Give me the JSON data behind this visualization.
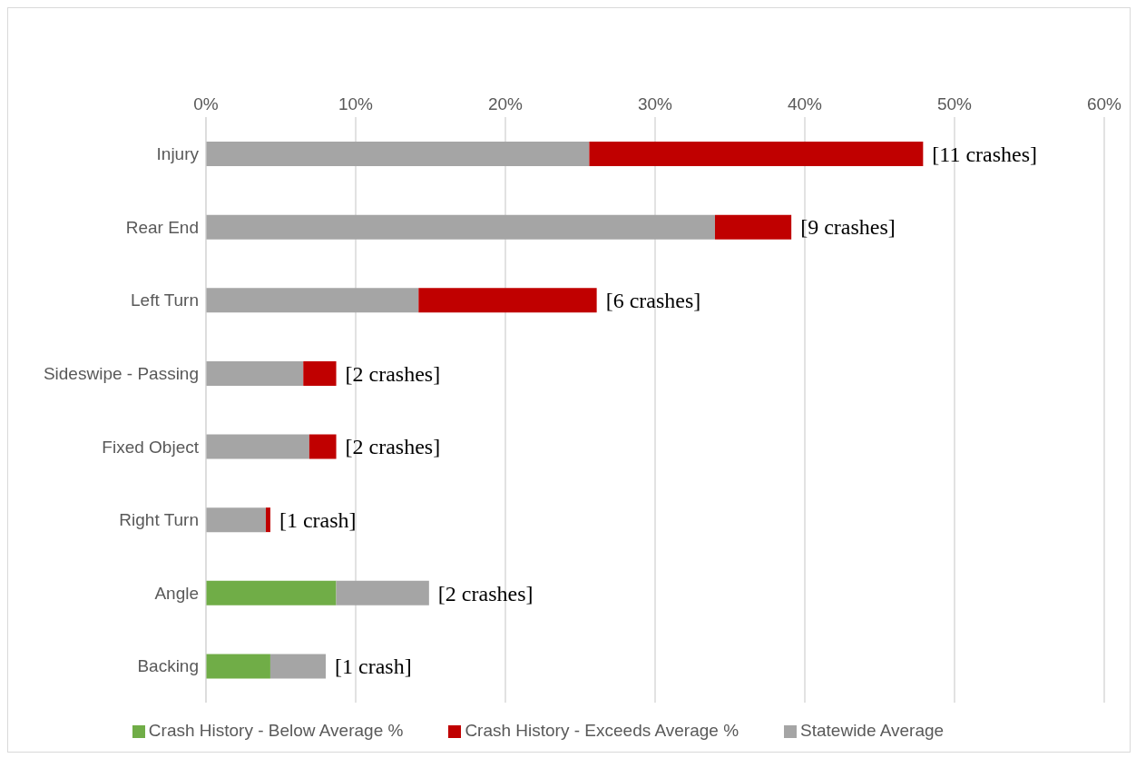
{
  "chart_data": {
    "type": "bar",
    "orientation": "horizontal",
    "stacked": true,
    "categories": [
      "Injury",
      "Rear End",
      "Left Turn",
      "Sideswipe - Passing",
      "Fixed Object",
      "Right Turn",
      "Angle",
      "Backing"
    ],
    "series": [
      {
        "name": "Crash History - Below Average %",
        "color": "#70ad47",
        "values": [
          null,
          null,
          null,
          null,
          null,
          null,
          8.7,
          4.3
        ]
      },
      {
        "name": "Statewide Average",
        "color": "#a5a5a5",
        "values": [
          25.6,
          34.0,
          14.2,
          6.5,
          6.9,
          4.0,
          6.2,
          3.7
        ]
      },
      {
        "name": "Crash History - Exceeds Average %",
        "color": "#c00000",
        "values": [
          22.3,
          5.1,
          11.9,
          2.2,
          1.8,
          0.3,
          null,
          null
        ]
      }
    ],
    "xlim": [
      0,
      60
    ],
    "xticks": [
      {
        "value": 0,
        "label": "0%"
      },
      {
        "value": 10,
        "label": "10%"
      },
      {
        "value": 20,
        "label": "20%"
      },
      {
        "value": 30,
        "label": "30%"
      },
      {
        "value": 40,
        "label": "40%"
      },
      {
        "value": 50,
        "label": "50%"
      },
      {
        "value": 60,
        "label": "60%"
      }
    ],
    "grid": "x",
    "legend": "bottom",
    "annotations": [
      {
        "text": "[11 crashes]",
        "x": 47.9,
        "y": "Injury"
      },
      {
        "text": "[9 crashes]",
        "x": 39.1,
        "y": "Rear End"
      },
      {
        "text": "[6 crashes]",
        "x": 26.1,
        "y": "Left Turn"
      },
      {
        "text": "[2 crashes]",
        "x": 8.7,
        "y": "Sideswipe - Passing"
      },
      {
        "text": "[2 crashes]",
        "x": 8.7,
        "y": "Fixed Object"
      },
      {
        "text": "[1 crash]",
        "x": 4.3,
        "y": "Right Turn"
      },
      {
        "text": "[2 crashes]",
        "x": 14.9,
        "y": "Angle"
      },
      {
        "text": "[1 crash]",
        "x": 8.0,
        "y": "Backing"
      }
    ]
  }
}
